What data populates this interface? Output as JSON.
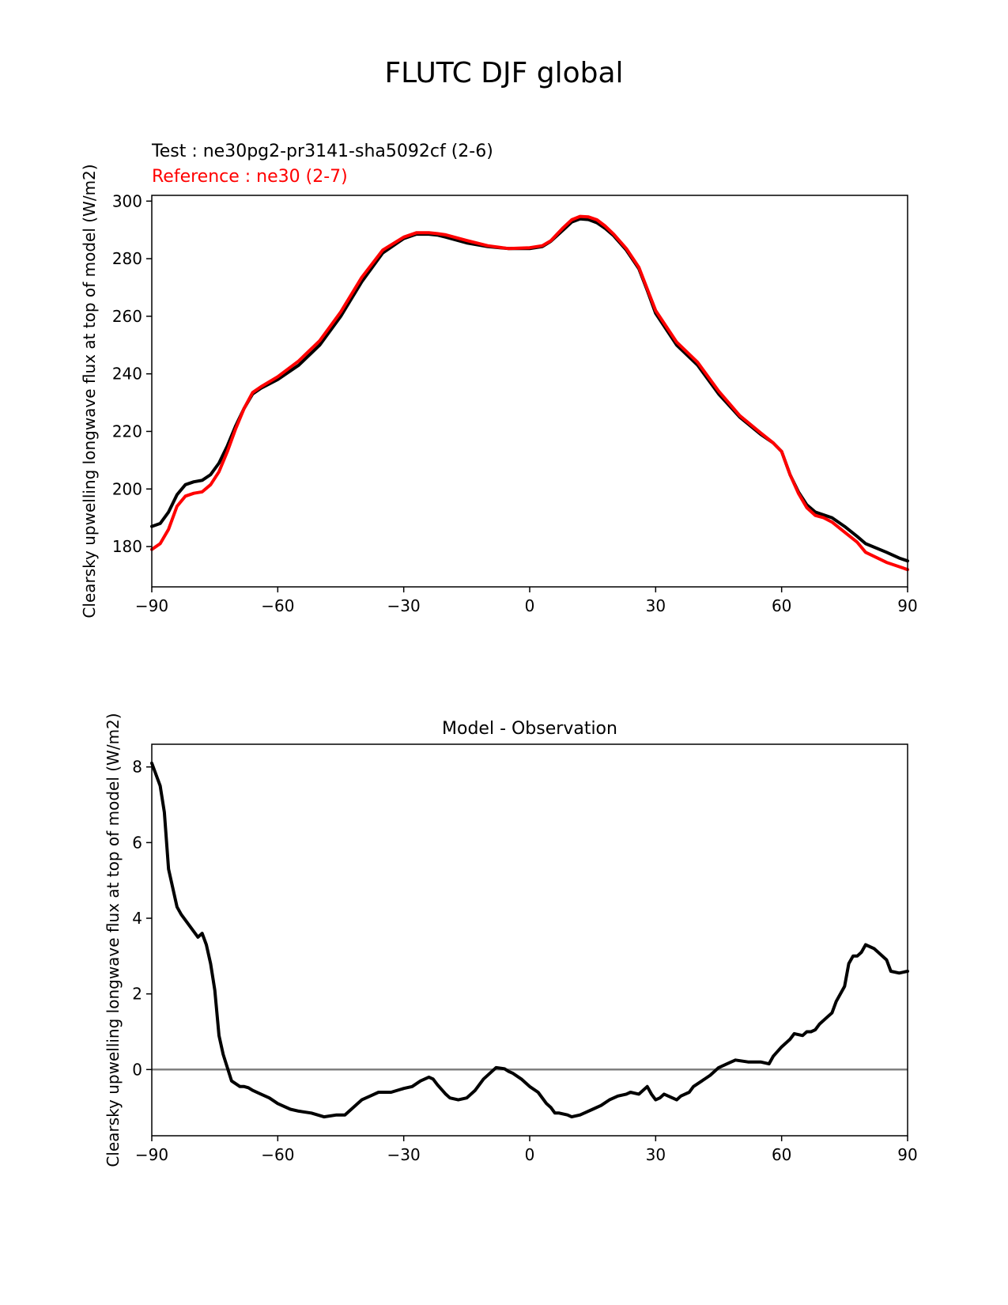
{
  "title": "FLUTC DJF global",
  "chart_data": [
    {
      "type": "line",
      "legend": [
        {
          "label": "Test : ne30pg2-pr3141-sha5092cf (2-6)",
          "color": "#000000"
        },
        {
          "label": "Reference : ne30 (2-7)",
          "color": "#ff0000"
        }
      ],
      "ylabel": "Clearsky upwelling longwave flux at top of model (W/m2)",
      "xlabel": "",
      "xlim": [
        -90,
        90
      ],
      "ylim": [
        166,
        302
      ],
      "xticks": [
        -90,
        -60,
        -30,
        0,
        30,
        60,
        90
      ],
      "xtick_labels": [
        "−90",
        "−60",
        "−30",
        "0",
        "30",
        "60",
        "90"
      ],
      "yticks": [
        180,
        200,
        220,
        240,
        260,
        280,
        300
      ],
      "ytick_labels": [
        "180",
        "200",
        "220",
        "240",
        "260",
        "280",
        "300"
      ],
      "series": [
        {
          "name": "Test : ne30pg2-pr3141-sha5092cf (2-6)",
          "color": "#000000",
          "x": [
            -90,
            -88,
            -86,
            -84,
            -82,
            -80,
            -78,
            -76,
            -74,
            -72,
            -70,
            -68,
            -66,
            -64,
            -60,
            -55,
            -50,
            -45,
            -40,
            -35,
            -30,
            -27,
            -24,
            -22,
            -20,
            -15,
            -10,
            -5,
            0,
            3,
            5,
            8,
            10,
            12,
            14,
            16,
            18,
            20,
            23,
            26,
            28,
            30,
            35,
            40,
            45,
            50,
            55,
            58,
            60,
            62,
            64,
            66,
            68,
            70,
            72,
            75,
            78,
            80,
            85,
            88,
            90
          ],
          "y": [
            187,
            188,
            192,
            198,
            201.5,
            202.5,
            203,
            205,
            209,
            215,
            222,
            228,
            233,
            235,
            238,
            243,
            250,
            260,
            272,
            282,
            287,
            288.5,
            288.5,
            288.2,
            287.5,
            285.5,
            284.2,
            283.5,
            283.5,
            284.2,
            286,
            290,
            292.7,
            293.8,
            293.6,
            292.5,
            290.5,
            288,
            283,
            276.5,
            269,
            261,
            250,
            243,
            233,
            225,
            219,
            216,
            213,
            205,
            199,
            194.5,
            192,
            191,
            190,
            187,
            183.5,
            181,
            178,
            176,
            175
          ]
        },
        {
          "name": "Reference : ne30 (2-7)",
          "color": "#ff0000",
          "x": [
            -90,
            -88,
            -86,
            -84,
            -82,
            -80,
            -78,
            -76,
            -74,
            -72,
            -70,
            -68,
            -66,
            -64,
            -60,
            -55,
            -50,
            -45,
            -40,
            -35,
            -30,
            -27,
            -24,
            -22,
            -20,
            -15,
            -10,
            -5,
            0,
            3,
            5,
            8,
            10,
            12,
            14,
            16,
            18,
            20,
            23,
            26,
            28,
            30,
            35,
            40,
            45,
            50,
            55,
            58,
            60,
            62,
            64,
            66,
            68,
            70,
            72,
            75,
            78,
            80,
            85,
            88,
            90
          ],
          "y": [
            179,
            181,
            186,
            194,
            197.5,
            198.5,
            199,
            201.5,
            206,
            213,
            221,
            228,
            233.5,
            235.5,
            239,
            244.5,
            251.5,
            261.5,
            273.5,
            283,
            287.5,
            289,
            289,
            288.7,
            288.3,
            286.3,
            284.5,
            283.5,
            283.8,
            284.5,
            286.2,
            290.8,
            293.5,
            294.7,
            294.5,
            293.5,
            291.3,
            288.5,
            283.5,
            277,
            269.5,
            262,
            251,
            244,
            234,
            225.5,
            219.5,
            216,
            213,
            205,
            198.5,
            193.5,
            190.8,
            190,
            188.5,
            185,
            181.5,
            178,
            174.5,
            173,
            172
          ]
        }
      ]
    },
    {
      "type": "line",
      "title": "Model - Observation",
      "ylabel": "Clearsky upwelling longwave flux at top of model (W/m2)",
      "xlabel": "",
      "xlim": [
        -90,
        90
      ],
      "ylim": [
        -1.75,
        8.6
      ],
      "xticks": [
        -90,
        -60,
        -30,
        0,
        30,
        60,
        90
      ],
      "xtick_labels": [
        "−90",
        "−60",
        "−30",
        "0",
        "30",
        "60",
        "90"
      ],
      "yticks": [
        0,
        2,
        4,
        6,
        8
      ],
      "ytick_labels": [
        "0",
        "2",
        "4",
        "6",
        "8"
      ],
      "zero_line_color": "#808080",
      "series": [
        {
          "name": "Model - Observation",
          "color": "#000000",
          "x": [
            -90,
            -88,
            -87,
            -86,
            -84,
            -83,
            -81,
            -79,
            -78,
            -77,
            -76,
            -75,
            -74,
            -73,
            -71,
            -69,
            -68,
            -67,
            -66,
            -64,
            -62,
            -60,
            -57,
            -55,
            -52,
            -49,
            -46,
            -44,
            -40,
            -38,
            -36,
            -35,
            -33,
            -30,
            -28,
            -26,
            -24,
            -23,
            -22,
            -20,
            -19,
            -17,
            -15,
            -13,
            -11,
            -9,
            -8,
            -6,
            -5,
            -4,
            -2,
            0,
            2,
            4,
            5,
            6,
            7,
            9,
            10,
            12,
            13,
            15,
            17,
            19,
            21,
            23,
            24,
            26,
            28,
            29,
            30,
            31,
            32,
            34,
            35,
            36,
            38,
            39,
            41,
            43,
            45,
            47,
            49,
            52,
            53,
            55,
            57,
            58,
            60,
            62,
            63,
            65,
            66,
            67,
            68,
            69,
            71,
            72,
            73,
            75,
            76,
            77,
            78,
            79,
            80,
            82,
            83,
            85,
            86,
            88,
            90
          ],
          "y": [
            8.1,
            7.5,
            6.8,
            5.3,
            4.3,
            4.1,
            3.8,
            3.5,
            3.6,
            3.3,
            2.8,
            2.1,
            0.9,
            0.4,
            -0.3,
            -0.45,
            -0.45,
            -0.48,
            -0.55,
            -0.65,
            -0.75,
            -0.9,
            -1.05,
            -1.1,
            -1.15,
            -1.25,
            -1.2,
            -1.2,
            -0.8,
            -0.7,
            -0.6,
            -0.6,
            -0.6,
            -0.5,
            -0.45,
            -0.3,
            -0.2,
            -0.25,
            -0.4,
            -0.65,
            -0.75,
            -0.8,
            -0.75,
            -0.55,
            -0.25,
            -0.05,
            0.05,
            0.02,
            -0.05,
            -0.1,
            -0.25,
            -0.45,
            -0.6,
            -0.9,
            -1.0,
            -1.15,
            -1.15,
            -1.2,
            -1.25,
            -1.2,
            -1.15,
            -1.05,
            -0.95,
            -0.8,
            -0.7,
            -0.65,
            -0.6,
            -0.65,
            -0.45,
            -0.65,
            -0.8,
            -0.75,
            -0.65,
            -0.75,
            -0.8,
            -0.7,
            -0.6,
            -0.45,
            -0.3,
            -0.15,
            0.05,
            0.15,
            0.25,
            0.2,
            0.2,
            0.2,
            0.15,
            0.35,
            0.6,
            0.8,
            0.95,
            0.9,
            1.0,
            1.0,
            1.05,
            1.2,
            1.4,
            1.5,
            1.8,
            2.2,
            2.8,
            3.0,
            3.0,
            3.1,
            3.3,
            3.2,
            3.1,
            2.9,
            2.6,
            2.55,
            2.6
          ]
        }
      ]
    }
  ]
}
